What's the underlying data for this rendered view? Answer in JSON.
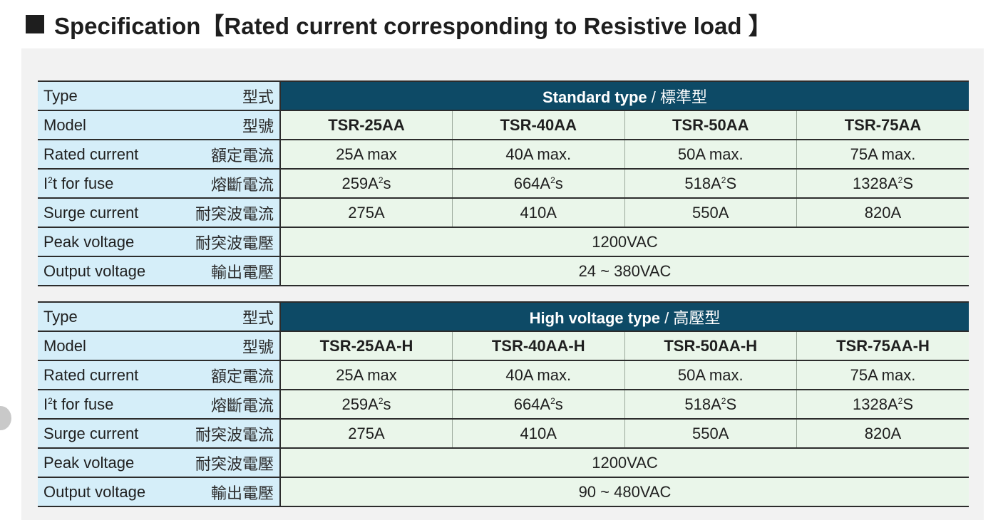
{
  "heading": "Specification【Rated current corresponding to Resistive load 】",
  "labels": {
    "type_en": "Type",
    "type_zh": "型式",
    "model_en": "Model",
    "model_zh": "型號",
    "rated_en": "Rated current",
    "rated_zh": "額定電流",
    "i2t_pre": "I",
    "i2t_sup": "2",
    "i2t_en": "t for fuse",
    "i2t_zh": "熔斷電流",
    "surge_en": "Surge current",
    "surge_zh": "耐突波電流",
    "peak_en": "Peak voltage",
    "peak_zh": "耐突波電壓",
    "output_en": "Output voltage",
    "output_zh": "輸出電壓"
  },
  "standard": {
    "type_en": "Standard type",
    "type_zh": " / 標準型",
    "models": [
      "TSR-25AA",
      "TSR-40AA",
      "TSR-50AA",
      "TSR-75AA"
    ],
    "rated": [
      "25A max",
      "40A max.",
      "50A max.",
      "75A max."
    ],
    "i2t": [
      {
        "num": "259A",
        "sup": "2",
        "unit": "s"
      },
      {
        "num": "664A",
        "sup": "2",
        "unit": "s"
      },
      {
        "num": "518A",
        "sup": "2",
        "unit": "S"
      },
      {
        "num": "1328A",
        "sup": "2",
        "unit": "S"
      }
    ],
    "surge": [
      "275A",
      "410A",
      "550A",
      "820A"
    ],
    "peak": "1200VAC",
    "output": "24 ~ 380VAC"
  },
  "high": {
    "type_en": "High voltage type",
    "type_zh": " / 高壓型",
    "models": [
      "TSR-25AA-H",
      "TSR-40AA-H",
      "TSR-50AA-H",
      "TSR-75AA-H"
    ],
    "rated": [
      "25A max",
      "40A max.",
      "50A max.",
      "75A max."
    ],
    "i2t": [
      {
        "num": "259A",
        "sup": "2",
        "unit": "s"
      },
      {
        "num": "664A",
        "sup": "2",
        "unit": "s"
      },
      {
        "num": "518A",
        "sup": "2",
        "unit": "S"
      },
      {
        "num": "1328A",
        "sup": "2",
        "unit": "S"
      }
    ],
    "surge": [
      "275A",
      "410A",
      "550A",
      "820A"
    ],
    "peak": "1200VAC",
    "output": "90 ~ 480VAC"
  }
}
